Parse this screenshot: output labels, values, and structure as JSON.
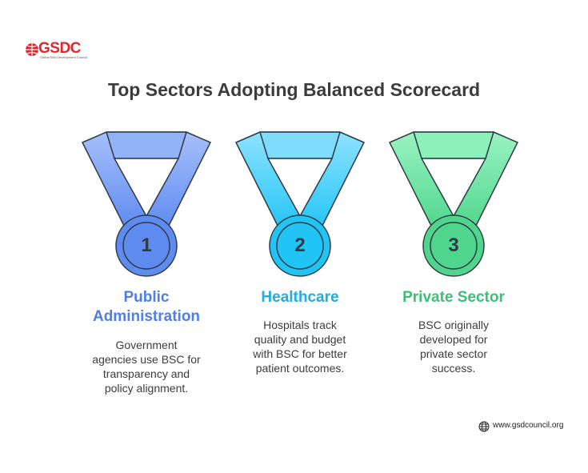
{
  "logo": {
    "text": "GSDC",
    "tagline": "Global Skill Development Council"
  },
  "title": "Top Sectors Adopting Balanced Scorecard",
  "sectors": [
    {
      "number": "1",
      "name_line1": "Public",
      "name_line2": "Administration",
      "desc": [
        "Government",
        "agencies use BSC for",
        "transparency and",
        "policy alignment."
      ],
      "color": "#4f7fe6"
    },
    {
      "number": "2",
      "name_line1": "Healthcare",
      "desc": [
        "Hospitals track",
        "quality and budget",
        "with BSC for better",
        "patient outcomes."
      ],
      "color": "#1faee0"
    },
    {
      "number": "3",
      "name_line1": "Private Sector",
      "desc": [
        "BSC originally",
        "developed for",
        "private sector",
        "success."
      ],
      "color": "#3dbf78"
    }
  ],
  "footer": {
    "url": "www.gsdcouncil.org"
  }
}
